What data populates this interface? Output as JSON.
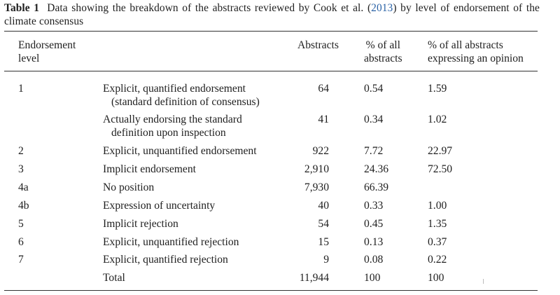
{
  "caption": {
    "label": "Table 1",
    "text_before": "Data showing the breakdown of the abstracts reviewed by Cook et al. (",
    "ref": "2013",
    "text_after": ") by level of endorsement of the climate consensus"
  },
  "columns": {
    "level": [
      "Endorsement",
      "level"
    ],
    "abstracts": "Abstracts",
    "pct_all": [
      "% of all",
      "abstracts"
    ],
    "pct_opinion": [
      "% of all abstracts",
      "expressing an opinion"
    ]
  },
  "rows": [
    {
      "level": "1",
      "desc": [
        "Explicit, quantified endorsement",
        "(standard definition of consensus)"
      ],
      "abstracts": "64",
      "pct_all": "0.54",
      "pct_opinion": "1.59"
    },
    {
      "level": "",
      "desc": [
        "Actually endorsing the standard",
        "definition upon inspection"
      ],
      "abstracts": "41",
      "pct_all": "0.34",
      "pct_opinion": "1.02"
    },
    {
      "level": "2",
      "desc": [
        "Explicit, unquantified endorsement"
      ],
      "abstracts": "922",
      "pct_all": "7.72",
      "pct_opinion": "22.97"
    },
    {
      "level": "3",
      "desc": [
        "Implicit endorsement"
      ],
      "abstracts": "2,910",
      "pct_all": "24.36",
      "pct_opinion": "72.50"
    },
    {
      "level": "4a",
      "desc": [
        "No position"
      ],
      "abstracts": "7,930",
      "pct_all": "66.39",
      "pct_opinion": ""
    },
    {
      "level": "4b",
      "desc": [
        "Expression of uncertainty"
      ],
      "abstracts": "40",
      "pct_all": "0.33",
      "pct_opinion": "1.00"
    },
    {
      "level": "5",
      "desc": [
        "Implicit rejection"
      ],
      "abstracts": "54",
      "pct_all": "0.45",
      "pct_opinion": "1.35"
    },
    {
      "level": "6",
      "desc": [
        "Explicit, unquantified rejection"
      ],
      "abstracts": "15",
      "pct_all": "0.13",
      "pct_opinion": "0.37"
    },
    {
      "level": "7",
      "desc": [
        "Explicit, quantified rejection"
      ],
      "abstracts": "9",
      "pct_all": "0.08",
      "pct_opinion": "0.22"
    },
    {
      "level": "",
      "desc": [
        "Total"
      ],
      "abstracts": "11,944",
      "pct_all": "100",
      "pct_opinion": "100"
    }
  ]
}
